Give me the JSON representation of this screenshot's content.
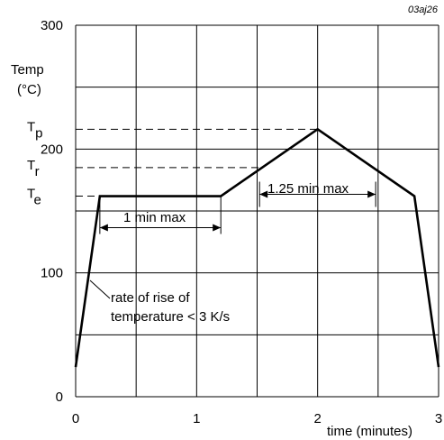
{
  "ref_code": "03aj26",
  "chart_data": {
    "type": "line",
    "title": "",
    "xlabel": "time (minutes)",
    "ylabel": "Temp",
    "ylabel_unit": "(°C)",
    "xlim": [
      0,
      3
    ],
    "ylim": [
      0,
      300
    ],
    "x_ticks": [
      "0",
      "1",
      "2",
      "3"
    ],
    "y_ticks": [
      "0",
      "100",
      "200",
      "300"
    ],
    "grid": true,
    "series": [
      {
        "x": [
          0,
          0.2,
          1.2,
          2.0,
          2.8,
          3.0
        ],
        "y": [
          24,
          162,
          162,
          216,
          162,
          24
        ]
      }
    ],
    "ref_levels": [
      {
        "symbol": "T",
        "subscript": "p",
        "y": 216
      },
      {
        "symbol": "T",
        "subscript": "r",
        "y": 185
      },
      {
        "symbol": "T",
        "subscript": "e",
        "y": 162
      }
    ],
    "annotations": {
      "hold_label": "1 min max",
      "peak_label": "1.25 min max",
      "rise_label_line1": "rate of rise of",
      "rise_label_line2": "temperature < 3 K/s"
    }
  }
}
